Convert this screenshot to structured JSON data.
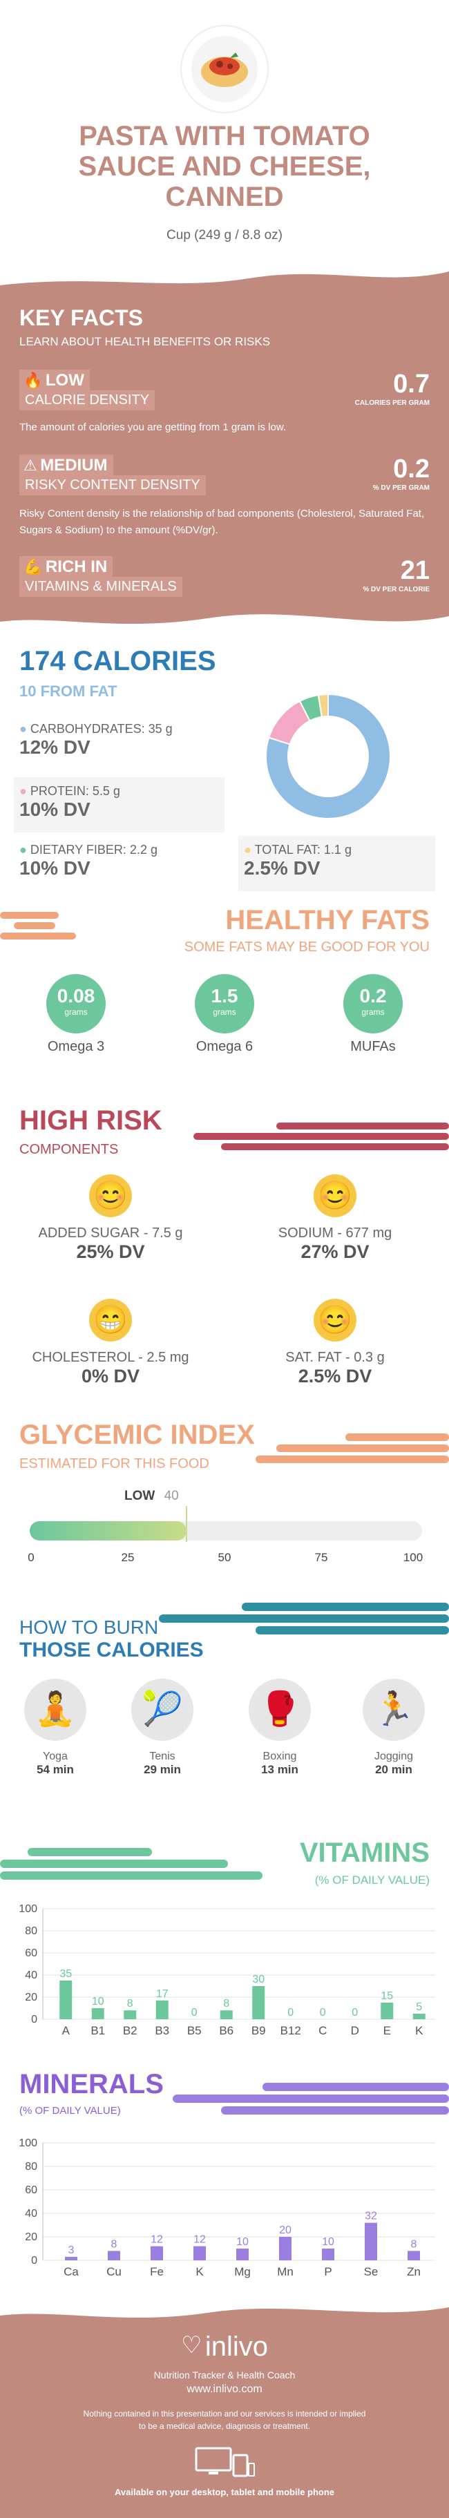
{
  "header": {
    "title_line1": "PASTA WITH TOMATO",
    "title_line2": "SAUCE AND CHEESE,",
    "title_line3": "CANNED",
    "serving": "Cup (249 g / 8.8 oz)"
  },
  "key_facts": {
    "title": "KEY FACTS",
    "subtitle": "LEARN ABOUT HEALTH BENEFITS OR RISKS",
    "low": {
      "tag": "LOW",
      "label": "CALORIE DENSITY",
      "value": "0.7",
      "unit": "CALORIES PER GRAM",
      "desc": "The amount of calories you are getting from 1 gram is low."
    },
    "medium": {
      "tag": "MEDIUM",
      "label": "RISKY CONTENT DENSITY",
      "value": "0.2",
      "unit": "% DV PER GRAM",
      "desc": "Risky Content density is the relationship of bad components (Cholesterol, Saturated Fat, Sugars & Sodium) to the amount (%DV/gr)."
    },
    "rich": {
      "tag": "RICH IN",
      "label": "VITAMINS & MINERALS",
      "value": "21",
      "unit": "% DV PER CALORIE"
    }
  },
  "calories": {
    "title": "174 CALORIES",
    "from_fat": "10 FROM FAT",
    "carbs_label": "CARBOHYDRATES: 35 g",
    "carbs_dv": "12% DV",
    "protein_label": "PROTEIN: 5.5 g",
    "protein_dv": "10% DV",
    "fiber_label": "DIETARY FIBER: 2.2 g",
    "fiber_dv": "10% DV",
    "fat_label": "TOTAL FAT: 1.1 g",
    "fat_dv": "2.5% DV",
    "donut": [
      {
        "name": "carbohydrates",
        "value": 35,
        "color": "#8fbde3"
      },
      {
        "name": "protein",
        "value": 5.5,
        "color": "#f3a8c4"
      },
      {
        "name": "dietary fiber",
        "value": 2.2,
        "color": "#6cc79d"
      },
      {
        "name": "total fat",
        "value": 1.1,
        "color": "#f5d389"
      }
    ]
  },
  "healthy_fats": {
    "title": "HEALTHY FATS",
    "subtitle": "SOME FATS MAY BE GOOD FOR YOU",
    "unit": "grams",
    "items": [
      {
        "value": "0.08",
        "label": "Omega 3"
      },
      {
        "value": "1.5",
        "label": "Omega 6"
      },
      {
        "value": "0.2",
        "label": "MUFAs"
      }
    ]
  },
  "high_risk": {
    "title": "HIGH RISK",
    "subtitle": "COMPONENTS",
    "items": [
      {
        "label": "ADDED SUGAR - 7.5 g",
        "dv": "25% DV",
        "face": "😊"
      },
      {
        "label": "SODIUM - 677 mg",
        "dv": "27% DV",
        "face": "😊"
      },
      {
        "label": "CHOLESTEROL - 2.5 mg",
        "dv": "0% DV",
        "face": "😁"
      },
      {
        "label": "SAT. FAT - 0.3 g",
        "dv": "2.5% DV",
        "face": "😊"
      }
    ]
  },
  "glycemic": {
    "title": "GLYCEMIC INDEX",
    "subtitle": "ESTIMATED FOR THIS FOOD",
    "level": "LOW",
    "value": 40,
    "value_label": "40",
    "ticks": [
      "0",
      "25",
      "50",
      "75",
      "100"
    ]
  },
  "burn": {
    "title_line1": "HOW TO BURN",
    "title_line2": "THOSE CALORIES",
    "items": [
      {
        "name": "Yoga",
        "time": "54 min"
      },
      {
        "name": "Tenis",
        "time": "29 min"
      },
      {
        "name": "Boxing",
        "time": "13 min"
      },
      {
        "name": "Jogging",
        "time": "20 min"
      }
    ]
  },
  "chart_data": [
    {
      "type": "bar",
      "title": "VITAMINS",
      "subtitle": "(% OF DAILY VALUE)",
      "categories": [
        "A",
        "B1",
        "B2",
        "B3",
        "B5",
        "B6",
        "B9",
        "B12",
        "C",
        "D",
        "E",
        "K"
      ],
      "values": [
        35,
        10,
        8,
        17,
        0,
        8,
        30,
        0,
        0,
        0,
        15,
        5
      ],
      "value_labels": [
        "35",
        "10",
        "8",
        "17",
        "0",
        "8",
        "30",
        "0",
        "0",
        "0",
        "15",
        "5"
      ],
      "yticks": [
        "0",
        "20",
        "40",
        "60",
        "80",
        "100"
      ],
      "ylim": [
        0,
        100
      ],
      "color": "#6cc79d"
    },
    {
      "type": "bar",
      "title": "MINERALS",
      "subtitle": "(% OF DAILY VALUE)",
      "categories": [
        "Ca",
        "Cu",
        "Fe",
        "K",
        "Mg",
        "Mn",
        "P",
        "Se",
        "Zn"
      ],
      "values": [
        3,
        8,
        12,
        12,
        10,
        20,
        10,
        32,
        8
      ],
      "value_labels": [
        "3",
        "8",
        "12",
        "12",
        "10",
        "20",
        "10",
        "32",
        "8"
      ],
      "yticks": [
        "0",
        "20",
        "40",
        "60",
        "80",
        "100"
      ],
      "ylim": [
        0,
        100
      ],
      "color": "#9b7fe0"
    }
  ],
  "footer": {
    "brand": "inlivo",
    "tagline": "Nutrition Tracker & Health Coach",
    "url": "www.inlivo.com",
    "disclaimer_line1": "Nothing contained in this presentation and our services is intended or implied",
    "disclaimer_line2": "to be a medical advice, diagnosis or treatment.",
    "available": "Available on your desktop, tablet and mobile phone"
  },
  "colors": {
    "rose": "#c08a7f",
    "rose_dark": "#b57a70",
    "blue": "#2d7cb5",
    "green": "#6cc79d",
    "orange": "#f0a57c",
    "red": "#b8485a",
    "teal": "#2e8fa3",
    "purple": "#8a5fd6"
  }
}
